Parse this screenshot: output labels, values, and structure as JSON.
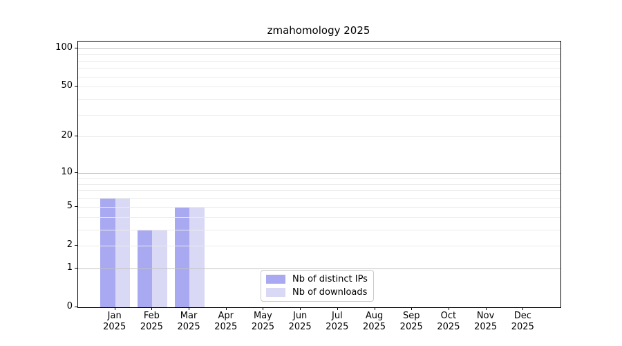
{
  "chart": {
    "title": "zmahomology 2025",
    "type": "bar",
    "year_label": "2025",
    "months": [
      "Jan",
      "Feb",
      "Mar",
      "Apr",
      "May",
      "Jun",
      "Jul",
      "Aug",
      "Sep",
      "Oct",
      "Nov",
      "Dec"
    ],
    "series": [
      {
        "name": "Nb of distinct IPs",
        "color": "#a9a9f2",
        "values": [
          6,
          3,
          5,
          null,
          null,
          null,
          null,
          null,
          null,
          null,
          null,
          null
        ]
      },
      {
        "name": "Nb of downloads",
        "color": "#d9d9f5",
        "values": [
          6,
          3,
          5,
          null,
          null,
          null,
          null,
          null,
          null,
          null,
          null,
          null
        ]
      }
    ],
    "y_ticks": [
      0,
      1,
      2,
      5,
      10,
      20,
      50,
      100
    ],
    "scale": "log1p",
    "ylim": [
      0,
      113
    ],
    "grid": {
      "major_values": [
        1,
        10,
        100
      ],
      "minor_values": [
        2,
        3,
        4,
        5,
        6,
        7,
        8,
        9,
        20,
        30,
        40,
        50,
        60,
        70,
        80,
        90
      ],
      "major_color": "#c2c2c2",
      "minor_color": "#ebebeb"
    },
    "legend_position": "bottom-center",
    "axis_color": "#000000",
    "bar_color_dark": "#a9a9f2",
    "bar_color_light": "#d9d9f5"
  }
}
